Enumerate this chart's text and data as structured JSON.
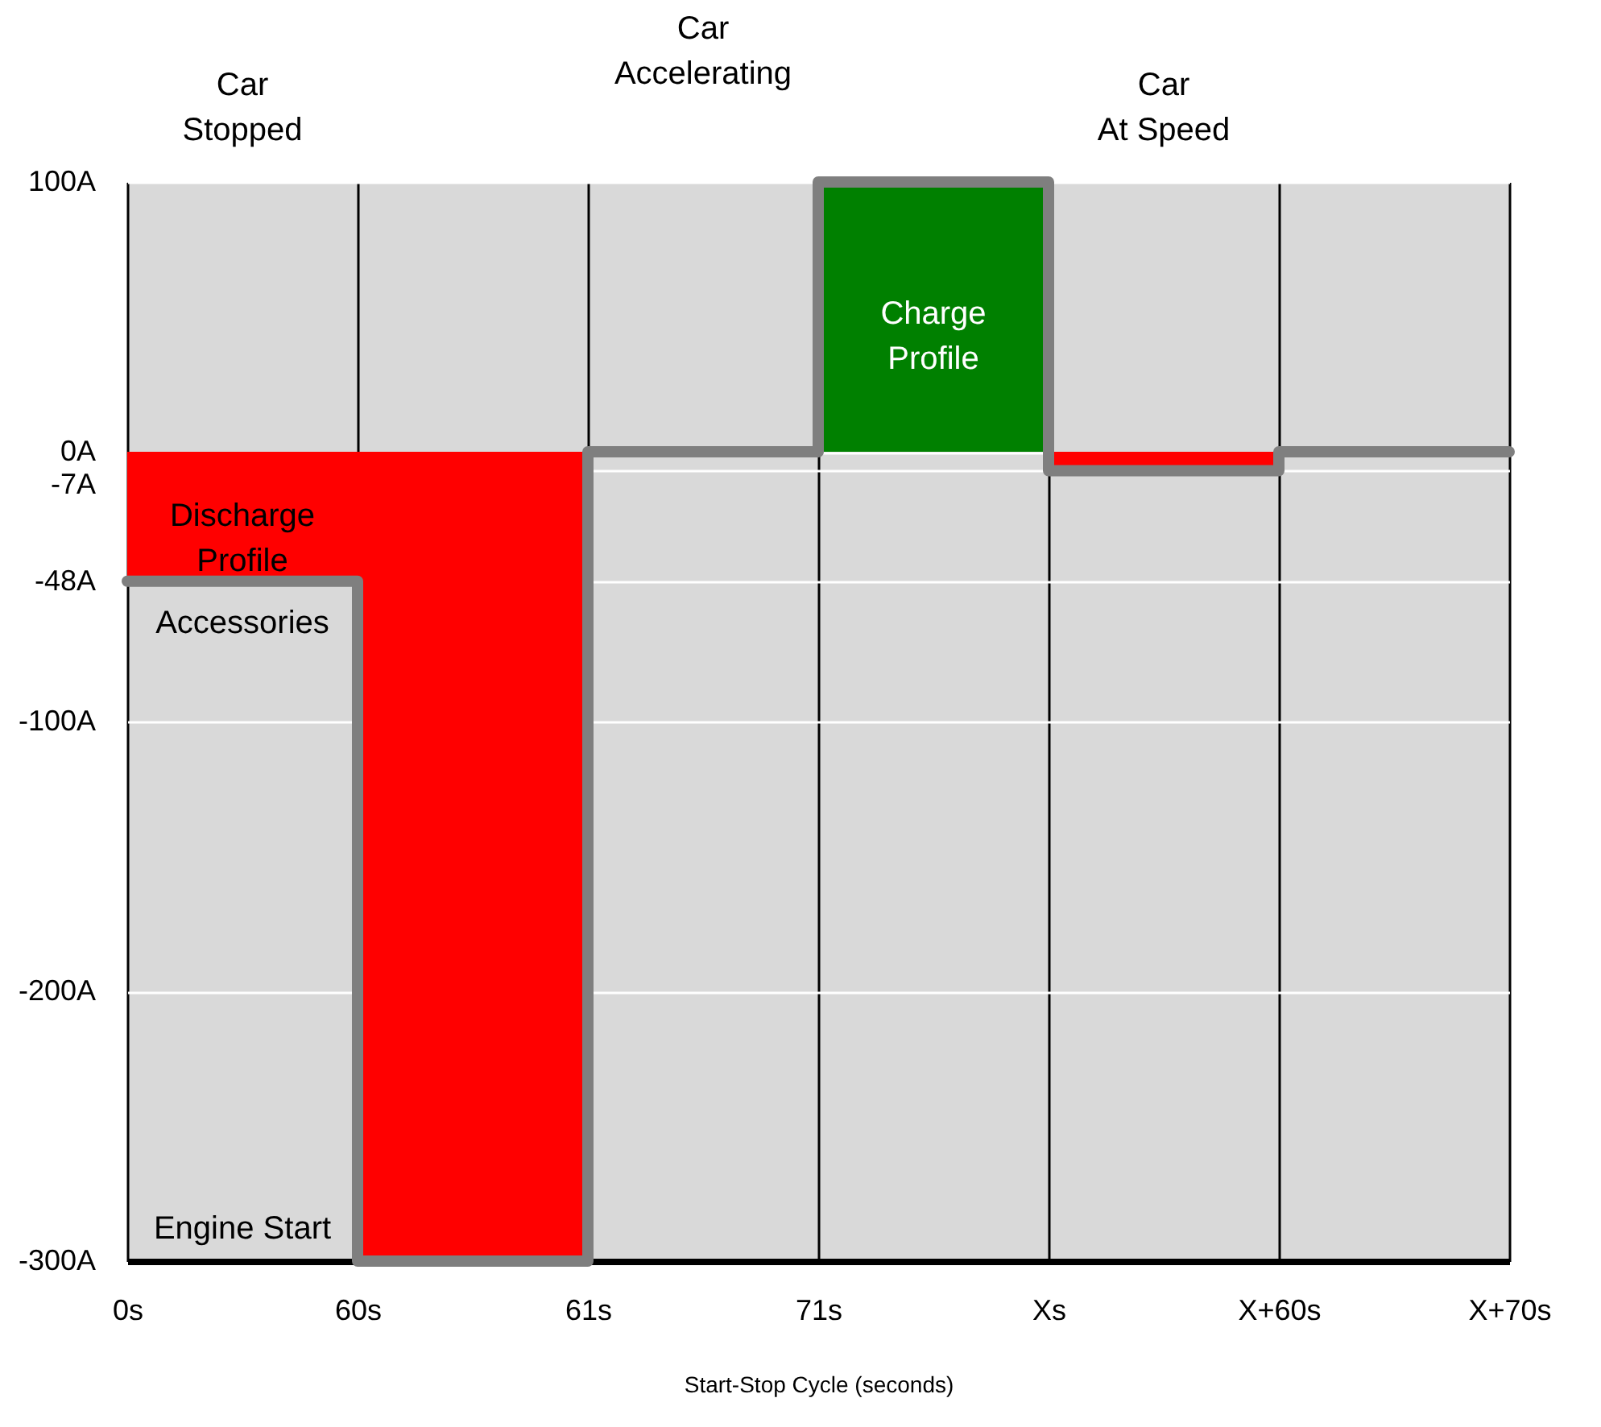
{
  "chart_data": {
    "type": "step",
    "xlabel": "Start-Stop Cycle (seconds)",
    "categories": [
      "0s",
      "60s",
      "61s",
      "71s",
      "Xs",
      "X+60s",
      "X+70s"
    ],
    "series": [
      {
        "name": "Discharge Profile",
        "type": "area",
        "color": "#ff0000",
        "values": [
          -48,
          -300,
          0,
          0,
          -7,
          0,
          0
        ]
      },
      {
        "name": "Charge Profile",
        "type": "area",
        "color": "#008000",
        "values": [
          0,
          0,
          0,
          100,
          0,
          0,
          0
        ]
      },
      {
        "color": "#7f7f7f",
        "values": [
          -48,
          -300,
          0,
          100,
          -7,
          0,
          0
        ]
      }
    ],
    "ylim": [
      -300,
      100
    ],
    "yticks": [
      {
        "value": 100,
        "label": "100A"
      },
      {
        "value": 0,
        "label": "0A"
      },
      {
        "value": -7,
        "label": "-7A"
      },
      {
        "value": -48,
        "label": "-48A"
      },
      {
        "value": -100,
        "label": "-100A"
      },
      {
        "value": -200,
        "label": "-200A"
      },
      {
        "value": -300,
        "label": "-300A"
      }
    ],
    "grid": true,
    "annotations": [
      "Car\nStopped",
      "Car\nAccelerating",
      "Car\nAt Speed",
      "Accessories",
      "Engine Start"
    ]
  }
}
